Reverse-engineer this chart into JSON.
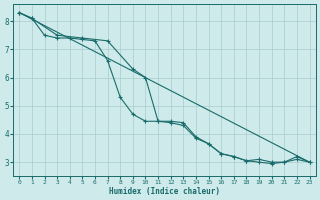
{
  "background_color": "#ceeaea",
  "grid_color": "#aacccc",
  "line_color": "#1a6b6b",
  "xlabel": "Humidex (Indice chaleur)",
  "xlim": [
    -0.5,
    23.5
  ],
  "ylim": [
    2.5,
    8.6
  ],
  "xticks": [
    0,
    1,
    2,
    3,
    4,
    5,
    6,
    7,
    8,
    9,
    10,
    11,
    12,
    13,
    14,
    15,
    16,
    17,
    18,
    19,
    20,
    21,
    22,
    23
  ],
  "yticks": [
    3,
    4,
    5,
    6,
    7,
    8
  ],
  "line1_x": [
    0,
    1,
    2,
    3,
    4,
    5,
    6,
    7,
    8,
    9,
    10,
    11,
    12,
    13,
    14,
    15,
    16,
    17,
    18,
    19,
    20,
    21,
    22,
    23
  ],
  "line1_y": [
    8.3,
    8.1,
    7.5,
    7.4,
    7.4,
    7.35,
    7.3,
    6.6,
    5.3,
    4.7,
    4.45,
    4.45,
    4.4,
    4.3,
    3.85,
    3.65,
    3.3,
    3.2,
    3.05,
    3.0,
    2.95,
    3.0,
    3.1,
    3.0
  ],
  "line2_x": [
    0,
    1,
    3,
    5,
    7,
    9,
    10,
    11,
    12,
    13,
    14,
    15,
    16,
    17,
    18,
    19,
    20,
    21,
    22,
    23
  ],
  "line2_y": [
    8.3,
    8.1,
    7.5,
    7.4,
    7.3,
    6.3,
    6.0,
    4.45,
    4.45,
    4.4,
    3.9,
    3.65,
    3.3,
    3.2,
    3.05,
    3.1,
    3.0,
    3.0,
    3.2,
    3.0
  ],
  "line3_x": [
    0,
    23
  ],
  "line3_y": [
    8.3,
    3.0
  ]
}
